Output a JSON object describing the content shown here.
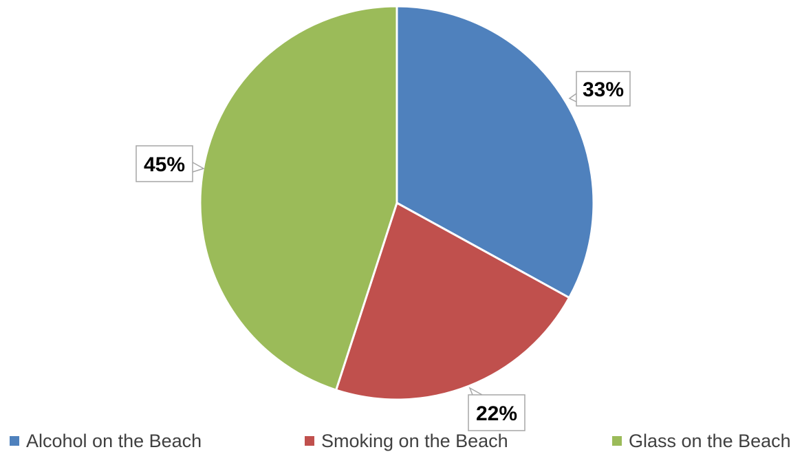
{
  "chart_data": {
    "type": "pie",
    "title": "",
    "slices": [
      {
        "label": "Alcohol on the Beach",
        "value": 33,
        "display": "33%",
        "color": "#4F81BD"
      },
      {
        "label": "Smoking on the Beach",
        "value": 22,
        "display": "22%",
        "color": "#C0504D"
      },
      {
        "label": "Glass on the Beach",
        "value": 45,
        "display": "45%",
        "color": "#9BBB59"
      }
    ],
    "legend_position": "bottom",
    "data_labels": "callouts"
  }
}
